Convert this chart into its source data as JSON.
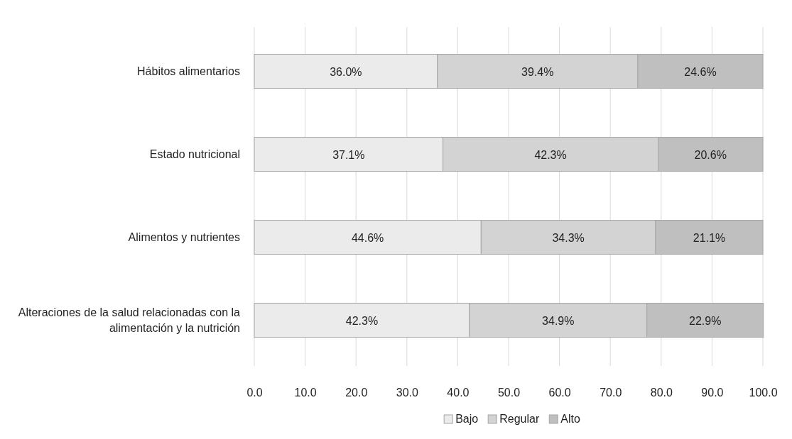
{
  "chart_data": {
    "type": "bar",
    "orientation": "horizontal",
    "stacked": true,
    "categories": [
      "Hábitos alimentarios",
      "Estado nutricional",
      "Alimentos y nutrientes",
      "Alteraciones de la salud relacionadas con la alimentación y la nutrición"
    ],
    "series": [
      {
        "name": "Bajo",
        "color": "#ebebeb",
        "values": [
          36.0,
          37.1,
          44.6,
          42.3
        ],
        "value_labels": [
          "36.0%",
          "37.1%",
          "44.6%",
          "42.3%"
        ]
      },
      {
        "name": "Regular",
        "color": "#d3d3d3",
        "values": [
          39.4,
          42.3,
          34.3,
          34.9
        ],
        "value_labels": [
          "39.4%",
          "42.3%",
          "34.3%",
          "34.9%"
        ]
      },
      {
        "name": "Alto",
        "color": "#bfbfbf",
        "values": [
          24.6,
          20.6,
          21.1,
          22.9
        ],
        "value_labels": [
          "24.6%",
          "20.6%",
          "21.1%",
          "22.9%"
        ]
      }
    ],
    "xlim": [
      0,
      100
    ],
    "xticks": [
      {
        "value": 0,
        "label": "0.0"
      },
      {
        "value": 10,
        "label": "10.0"
      },
      {
        "value": 20,
        "label": "20.0"
      },
      {
        "value": 30,
        "label": "30.0"
      },
      {
        "value": 40,
        "label": "40.0"
      },
      {
        "value": 50,
        "label": "50.0"
      },
      {
        "value": 60,
        "label": "60.0"
      },
      {
        "value": 70,
        "label": "70.0"
      },
      {
        "value": 80,
        "label": "80.0"
      },
      {
        "value": 90,
        "label": "90.0"
      },
      {
        "value": 100,
        "label": "100.0"
      }
    ],
    "grid": "x",
    "legend": "bottom"
  }
}
